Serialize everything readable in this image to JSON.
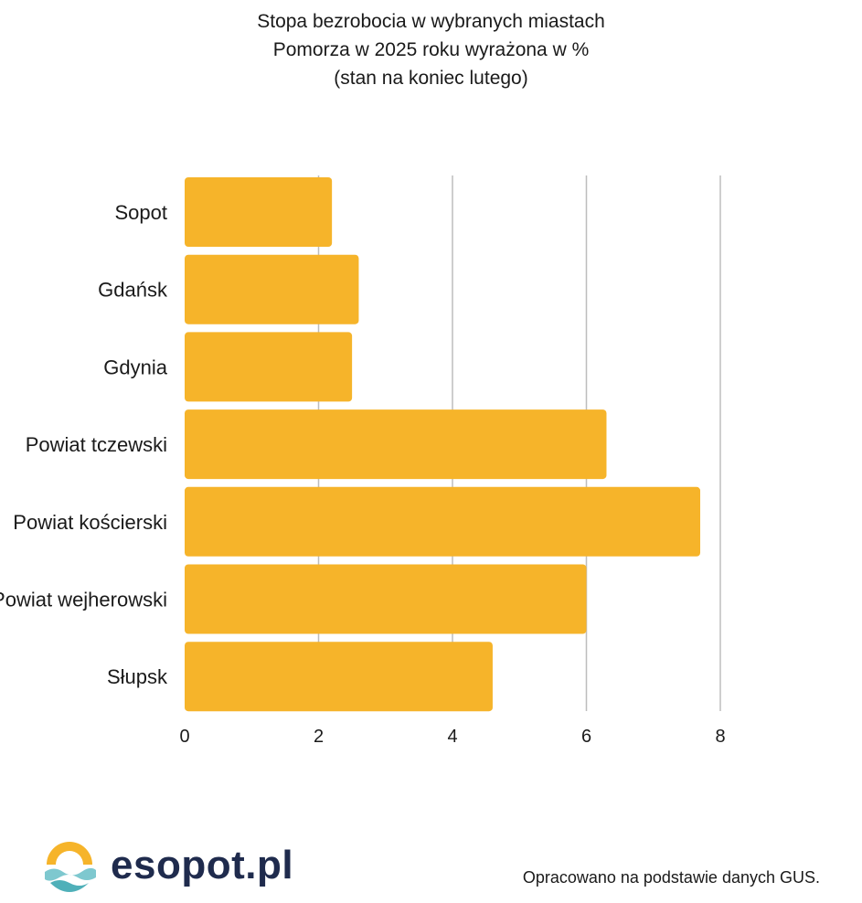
{
  "chart_data": {
    "type": "bar",
    "orientation": "horizontal",
    "title_lines": [
      "Stopa bezrobocia w wybranych miastach",
      "Pomorza w 2025 roku wyrażona w %",
      "(stan na koniec lutego)"
    ],
    "categories": [
      "Sopot",
      "Gdańsk",
      "Gdynia",
      "Powiat tczewski",
      "Powiat kościerski",
      "Powiat wejherowski",
      "Słupsk"
    ],
    "values": [
      2.2,
      2.6,
      2.5,
      6.3,
      7.7,
      6.0,
      4.6
    ],
    "xlim": [
      0,
      8
    ],
    "xticks": [
      "0",
      "2",
      "4",
      "6",
      "8"
    ],
    "grid": true,
    "bar_color": "#F6B42A",
    "grid_color": "#bdbdbd"
  },
  "footer": {
    "logo_text": "esopot.pl",
    "logo_icon": "sun-over-waves-icon",
    "source": "Opracowano na podstawie danych GUS."
  }
}
